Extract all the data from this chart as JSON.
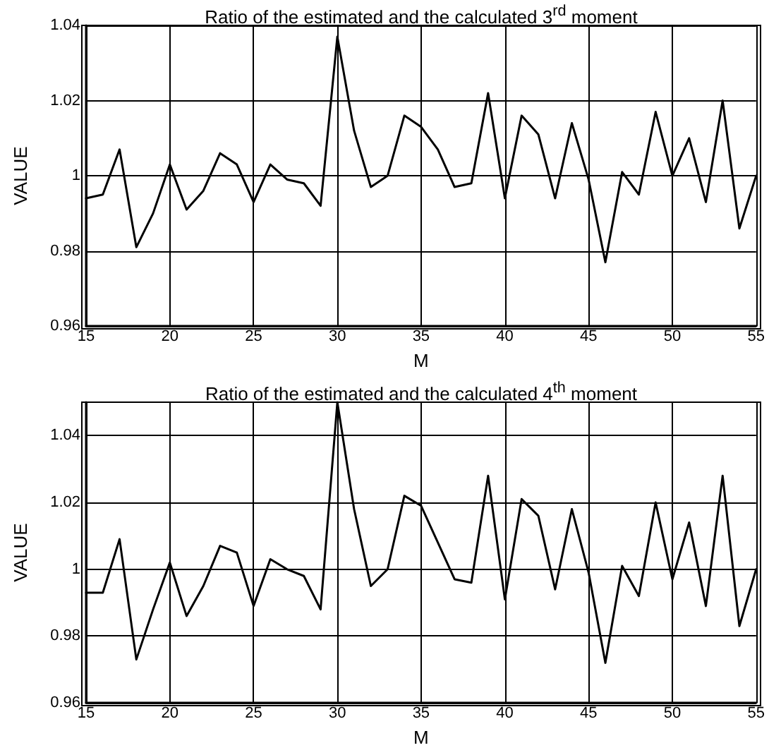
{
  "chart_data": [
    {
      "type": "line",
      "title": "Ratio of the estimated and the calculated 3$^{rd}$ moment",
      "xlabel": "M",
      "ylabel": "VALUE",
      "grid": true,
      "xlim": [
        15,
        55
      ],
      "xticks": [
        15,
        20,
        25,
        30,
        35,
        40,
        45,
        50,
        55
      ],
      "ylim": [
        0.96,
        1.04
      ],
      "yticks": [
        0.96,
        0.98,
        1,
        1.02,
        1.04
      ],
      "x": [
        15,
        16,
        17,
        18,
        19,
        20,
        21,
        22,
        23,
        24,
        25,
        26,
        27,
        28,
        29,
        30,
        31,
        32,
        33,
        34,
        35,
        36,
        37,
        38,
        39,
        40,
        41,
        42,
        43,
        44,
        45,
        46,
        47,
        48,
        49,
        50,
        51,
        52,
        53,
        54,
        55
      ],
      "series": [
        {
          "color": "#000000",
          "values": [
            0.994,
            0.995,
            1.007,
            0.981,
            0.99,
            1.003,
            0.991,
            0.996,
            1.006,
            1.003,
            0.993,
            1.003,
            0.999,
            0.998,
            0.992,
            1.037,
            1.012,
            0.997,
            1.0,
            1.016,
            1.013,
            1.007,
            0.997,
            0.998,
            1.022,
            0.994,
            1.016,
            1.011,
            0.994,
            1.014,
            0.999,
            0.977,
            1.001,
            0.995,
            1.017,
            1.0,
            1.01,
            0.993,
            1.02,
            0.986,
            1.0
          ]
        }
      ]
    },
    {
      "type": "line",
      "title": "Ratio of the estimated and the calculated 4$^{th}$ moment",
      "xlabel": "M",
      "ylabel": "VALUE",
      "grid": true,
      "xlim": [
        15,
        55
      ],
      "xticks": [
        15,
        20,
        25,
        30,
        35,
        40,
        45,
        50,
        55
      ],
      "ylim": [
        0.96,
        1.05
      ],
      "yticks": [
        0.96,
        0.98,
        1,
        1.02,
        1.04
      ],
      "x": [
        15,
        16,
        17,
        18,
        19,
        20,
        21,
        22,
        23,
        24,
        25,
        26,
        27,
        28,
        29,
        30,
        31,
        32,
        33,
        34,
        35,
        36,
        37,
        38,
        39,
        40,
        41,
        42,
        43,
        44,
        45,
        46,
        47,
        48,
        49,
        50,
        51,
        52,
        53,
        54,
        55
      ],
      "series": [
        {
          "color": "#000000",
          "values": [
            0.993,
            0.993,
            1.009,
            0.973,
            0.988,
            1.002,
            0.986,
            0.995,
            1.007,
            1.005,
            0.989,
            1.003,
            1.0,
            0.998,
            0.988,
            1.05,
            1.018,
            0.995,
            1.0,
            1.022,
            1.019,
            1.008,
            0.997,
            0.996,
            1.028,
            0.991,
            1.021,
            1.016,
            0.994,
            1.018,
            0.999,
            0.972,
            1.001,
            0.992,
            1.02,
            0.997,
            1.014,
            0.989,
            1.028,
            0.983,
            1.0
          ]
        }
      ]
    }
  ]
}
